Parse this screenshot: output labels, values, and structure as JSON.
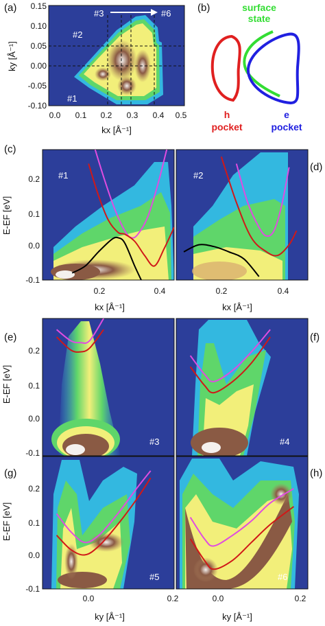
{
  "colors": {
    "background_blue": "#2c3e9a",
    "cyan": "#33b8e0",
    "green": "#5fd66a",
    "yellow": "#f2ef7a",
    "brown": "#8a5a44",
    "white_hot": "#f4f0ee",
    "h_band_red": "#d01818",
    "e_band_magenta": "#e04ce0",
    "surface_black": "#000000",
    "schem_red": "#e02020",
    "schem_green": "#33dd33",
    "schem_blue": "#2020e0"
  },
  "panel_a": {
    "letter": "(a)",
    "xlabel": "kx [Å⁻¹]",
    "ylabel": "ky [Å⁻¹]",
    "xticks": [
      "0.0",
      "0.1",
      "0.2",
      "0.3",
      "0.4",
      "0.5"
    ],
    "yticks": [
      "0.15",
      "0.10",
      "0.05",
      "0.00",
      "-0.05",
      "-0.10"
    ],
    "cut_labels": [
      "#1",
      "#2",
      "#3",
      "#6"
    ]
  },
  "panel_b": {
    "letter": "(b)",
    "surface_label_1": "surface",
    "surface_label_2": "state",
    "h_label_1": "h",
    "h_label_2": "pocket",
    "e_label_1": "e",
    "e_label_2": "pocket"
  },
  "panel_cd": {
    "letter_c": "(c)",
    "letter_d": "(d)",
    "ylabel": "E-EF [eV]",
    "yticks": [
      "0.2",
      "0.1",
      "0.0",
      "-0.1"
    ],
    "xticks": [
      "0.2",
      "0.4"
    ],
    "xlabel": "kx [Å⁻¹]",
    "cut_c": "#1",
    "cut_d": "#2"
  },
  "panel_efgh": {
    "letter_e": "(e)",
    "letter_f": "(f)",
    "letter_g": "(g)",
    "letter_h": "(h)",
    "ylabel": "E-EF [eV]",
    "yticks": [
      "0.2",
      "0.1",
      "0.0",
      "-0.1"
    ],
    "xticks": [
      "0.0",
      "0.2"
    ],
    "xlabel": "ky [Å⁻¹]",
    "cut_e": "#3",
    "cut_f": "#4",
    "cut_g": "#5",
    "cut_h": "#6"
  },
  "chart_data": [
    {
      "type": "heatmap",
      "panel": "a",
      "xlim": [
        0.0,
        0.5
      ],
      "ylim": [
        -0.1,
        0.15
      ],
      "xticks": [
        0.0,
        0.1,
        0.2,
        0.3,
        0.4,
        0.5
      ],
      "yticks": [
        -0.1,
        -0.05,
        0.0,
        0.05,
        0.1,
        0.15
      ],
      "cuts": {
        "#1": {
          "kx": 0.07,
          "ky": -0.02
        },
        "#2": {
          "kx": 0.12,
          "ky": 0.07
        },
        "#3": {
          "kx": 0.21,
          "ky": 0.12
        },
        "#6": {
          "kx": 0.39,
          "ky": 0.12
        }
      },
      "dashed_lines": {
        "ky": [
          0.05,
          0.0
        ],
        "kx": [
          0.215,
          0.265,
          0.3,
          0.385
        ]
      }
    },
    {
      "type": "heatmap",
      "panel": "c",
      "xlim": [
        0.05,
        0.45
      ],
      "ylim": [
        -0.1,
        0.27
      ],
      "series": [
        {
          "color": "magenta",
          "x": [
            0.21,
            0.24,
            0.27,
            0.3,
            0.32,
            0.34,
            0.37,
            0.4,
            0.43
          ],
          "y": [
            0.27,
            0.18,
            0.1,
            0.04,
            0.02,
            0.03,
            0.08,
            0.17,
            0.28
          ]
        },
        {
          "color": "red",
          "x": [
            0.19,
            0.22,
            0.25,
            0.28,
            0.3,
            0.33,
            0.36,
            0.39,
            0.42,
            0.45
          ],
          "y": [
            0.23,
            0.14,
            0.07,
            0.035,
            0.03,
            0.01,
            -0.03,
            -0.06,
            -0.01,
            0.05
          ]
        },
        {
          "color": "black",
          "x": [
            0.14,
            0.18,
            0.22,
            0.26,
            0.28,
            0.3,
            0.33,
            0.35
          ],
          "y": [
            -0.08,
            -0.06,
            -0.02,
            0.015,
            0.02,
            0.005,
            -0.06,
            -0.1
          ]
        }
      ]
    },
    {
      "type": "heatmap",
      "panel": "d",
      "xlim": [
        0.1,
        0.45
      ],
      "ylim": [
        -0.1,
        0.27
      ],
      "series": [
        {
          "color": "magenta",
          "x": [
            0.26,
            0.29,
            0.32,
            0.34,
            0.36,
            0.38,
            0.4
          ],
          "y": [
            0.23,
            0.12,
            0.05,
            0.025,
            0.04,
            0.11,
            0.22
          ]
        },
        {
          "color": "red",
          "x": [
            0.22,
            0.26,
            0.3,
            0.34,
            0.37,
            0.4,
            0.42
          ],
          "y": [
            0.25,
            0.12,
            0.02,
            -0.02,
            -0.03,
            0.0,
            0.04
          ]
        },
        {
          "color": "black",
          "x": [
            0.12,
            0.16,
            0.2,
            0.24,
            0.28,
            0.32
          ],
          "y": [
            -0.02,
            0.0,
            -0.005,
            -0.02,
            -0.04,
            -0.09
          ]
        }
      ]
    },
    {
      "type": "heatmap",
      "panel": "e",
      "xlim": [
        -0.08,
        0.2
      ],
      "ylim": [
        -0.1,
        0.27
      ],
      "series": [
        {
          "color": "magenta",
          "x": [
            -0.05,
            -0.02,
            0.0,
            0.02,
            0.05
          ],
          "y": [
            0.24,
            0.21,
            0.205,
            0.21,
            0.27
          ]
        },
        {
          "color": "red",
          "x": [
            -0.05,
            -0.02,
            0.0,
            0.02,
            0.05
          ],
          "y": [
            0.22,
            0.185,
            0.18,
            0.19,
            0.24
          ]
        }
      ]
    },
    {
      "type": "heatmap",
      "panel": "f",
      "xlim": [
        -0.08,
        0.2
      ],
      "ylim": [
        -0.1,
        0.27
      ],
      "series": [
        {
          "color": "magenta",
          "x": [
            -0.05,
            -0.02,
            0.0,
            0.04,
            0.08,
            0.12
          ],
          "y": [
            0.17,
            0.12,
            0.1,
            0.13,
            0.18,
            0.24
          ]
        },
        {
          "color": "red",
          "x": [
            -0.05,
            -0.02,
            0.0,
            0.04,
            0.08,
            0.12
          ],
          "y": [
            0.14,
            0.09,
            0.07,
            0.1,
            0.15,
            0.22
          ]
        }
      ]
    },
    {
      "type": "heatmap",
      "panel": "g",
      "xlim": [
        -0.08,
        0.2
      ],
      "ylim": [
        -0.1,
        0.27
      ],
      "series": [
        {
          "color": "magenta",
          "x": [
            -0.05,
            -0.02,
            0.01,
            0.04,
            0.08,
            0.12,
            0.15
          ],
          "y": [
            0.11,
            0.06,
            0.03,
            0.05,
            0.11,
            0.18,
            0.23
          ]
        },
        {
          "color": "red",
          "x": [
            -0.05,
            -0.02,
            0.01,
            0.04,
            0.08,
            0.12,
            0.15
          ],
          "y": [
            0.05,
            0.01,
            -0.005,
            0.02,
            0.08,
            0.15,
            0.21
          ]
        }
      ]
    },
    {
      "type": "heatmap",
      "panel": "h",
      "xlim": [
        -0.08,
        0.2
      ],
      "ylim": [
        -0.1,
        0.27
      ],
      "series": [
        {
          "color": "magenta",
          "x": [
            -0.05,
            -0.02,
            0.0,
            0.04,
            0.08,
            0.12,
            0.17
          ],
          "y": [
            0.1,
            0.04,
            0.02,
            0.05,
            0.09,
            0.14,
            0.18
          ]
        },
        {
          "color": "red",
          "x": [
            -0.05,
            -0.02,
            0.0,
            0.04,
            0.08,
            0.12,
            0.17
          ],
          "y": [
            0.04,
            -0.02,
            -0.045,
            -0.02,
            0.03,
            0.08,
            0.13
          ]
        }
      ]
    }
  ]
}
